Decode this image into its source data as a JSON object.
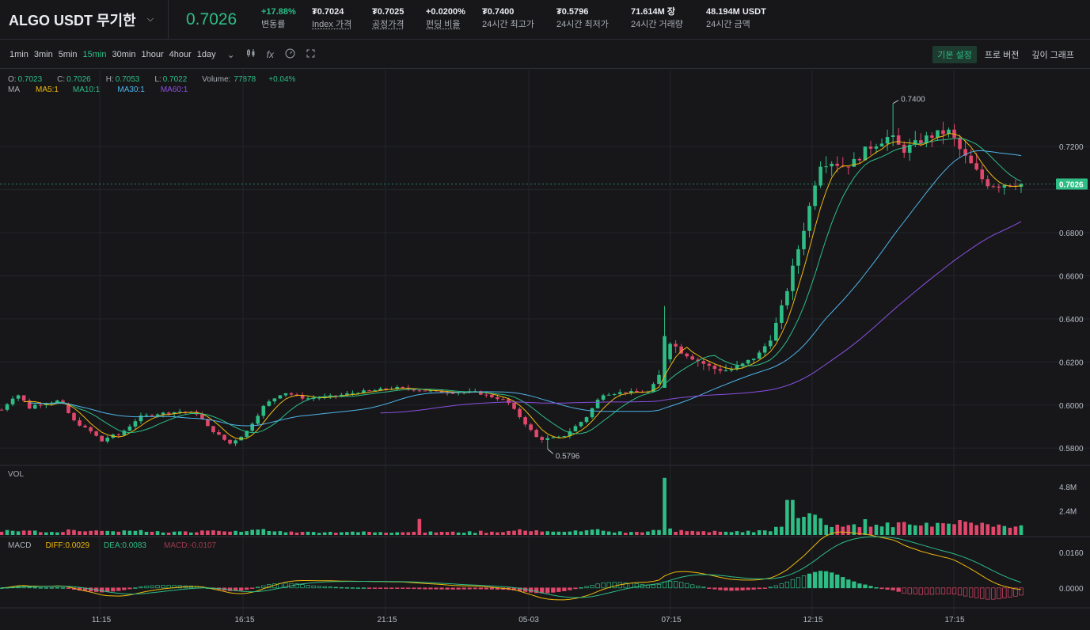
{
  "header": {
    "symbol": "ALGO USDT 무기한",
    "last_price": "0.7026",
    "stats": [
      {
        "value": "+17.88%",
        "label": "변동률",
        "green": true,
        "underline": false
      },
      {
        "value": "₮0.7024",
        "label": "Index 가격",
        "green": false,
        "underline": true
      },
      {
        "value": "₮0.7025",
        "label": "공정가격",
        "green": false,
        "underline": true
      },
      {
        "value": "+0.0200%",
        "label": "펀딩 비율",
        "green": false,
        "underline": true
      },
      {
        "value": "₮0.7400",
        "label": "24시간 최고가",
        "green": false,
        "underline": false
      },
      {
        "value": "₮0.5796",
        "label": "24시간 최저가",
        "green": false,
        "underline": false
      },
      {
        "value": "71.614M 장",
        "label": "24시간 거래량",
        "green": false,
        "underline": false
      },
      {
        "value": "48.194M USDT",
        "label": "24시간 금액",
        "green": false,
        "underline": false
      }
    ]
  },
  "toolbar": {
    "timeframes": [
      "1min",
      "3min",
      "5min",
      "15min",
      "30min",
      "1hour",
      "4hour",
      "1day"
    ],
    "active_timeframe": "15min",
    "icons": [
      "chevron-down-icon",
      "candle-type-icon",
      "indicator-fx-icon",
      "settings-gauge-icon",
      "fullscreen-icon"
    ],
    "right_tabs": [
      "기본 설정",
      "프로 버전",
      "깊이 그래프"
    ],
    "active_right_tab": "기본 설정"
  },
  "legend": {
    "open_label": "O:",
    "open": "0.7023",
    "close_label": "C:",
    "close": "0.7026",
    "high_label": "H:",
    "high": "0.7053",
    "low_label": "L:",
    "low": "0.7022",
    "volume_label": "Volume:",
    "volume": "77878",
    "change": "+0.04%",
    "ma_label": "MA",
    "ma": [
      {
        "name": "MA5:1",
        "color": "#f0b90b"
      },
      {
        "name": "MA10:1",
        "color": "#2ebd85"
      },
      {
        "name": "MA30:1",
        "color": "#4fb3e8"
      },
      {
        "name": "MA60:1",
        "color": "#8b4fe0"
      }
    ],
    "vol_label": "VOL",
    "macd_label": "MACD",
    "macd": [
      {
        "name": "DIFF:0.0029",
        "color": "#f0b90b"
      },
      {
        "name": "DEA:0.0083",
        "color": "#2ebd85"
      },
      {
        "name": "MACD:-0.0107",
        "color": "#9c3a4d"
      }
    ]
  },
  "colors": {
    "up": "#2ebd85",
    "down": "#e0476b",
    "grid": "#222428",
    "axis_text": "#b7bdc6"
  },
  "chart_data": {
    "type": "candlestick",
    "price_axis": {
      "ticks": [
        "0.7200",
        "0.6800",
        "0.6600",
        "0.6400",
        "0.6200",
        "0.6000",
        "0.5800"
      ],
      "range": [
        0.572,
        0.752
      ]
    },
    "last_price_tag": "0.7026",
    "high_marker": "0.7400",
    "low_marker": "0.5796",
    "x_ticks": [
      "11:15",
      "16:15",
      "21:15",
      "05-03",
      "07:15",
      "12:15",
      "17:15"
    ],
    "volume_axis": {
      "ticks": [
        "4.8M",
        "2.4M"
      ],
      "max": 6.0
    },
    "macd_axis": {
      "ticks": [
        "0.0160",
        "0.0000"
      ],
      "range": [
        -0.009,
        0.021
      ]
    }
  }
}
